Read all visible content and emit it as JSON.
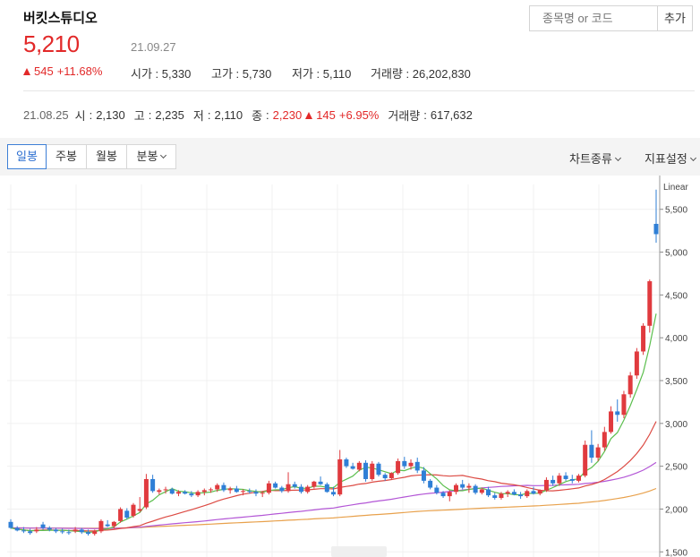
{
  "header": {
    "stock_name": "버킷스튜디오",
    "price": "5,210",
    "date": "21.09.27",
    "change": "545",
    "change_pct": "+11.68%",
    "stats": [
      {
        "label": "시가",
        "value": "5,330"
      },
      {
        "label": "고가",
        "value": "5,730"
      },
      {
        "label": "저가",
        "value": "5,110"
      },
      {
        "label": "거래량",
        "value": "26,202,830"
      }
    ]
  },
  "search": {
    "placeholder": "종목명 or 코드",
    "add_label": "추가"
  },
  "prev_day": {
    "date": "21.08.25",
    "open_label": "시",
    "open": "2,130",
    "high_label": "고",
    "high": "2,235",
    "low_label": "저",
    "low": "2,110",
    "close_label": "종",
    "close": "2,230",
    "change": "145",
    "change_pct": "+6.95%",
    "volume_label": "거래량",
    "volume": "617,632"
  },
  "toolbar": {
    "tabs": [
      "일봉",
      "주봉",
      "월봉",
      "분봉"
    ],
    "active_tab": "일봉",
    "chart_type_label": "차트종류",
    "indicator_label": "지표설정"
  },
  "colors": {
    "up": "#e03a3e",
    "down": "#2f7fd6",
    "ma5": "#5cbf4e",
    "ma20": "#dc4a43",
    "ma60": "#b356d6",
    "ma120": "#e8a14c"
  },
  "chart_data": {
    "type": "candlestick",
    "scale_label": "Linear",
    "ylim": [
      1440,
      5790
    ],
    "y_ticks": [
      {
        "value": 1500,
        "label": "1,500"
      },
      {
        "value": 2000,
        "label": "2,000"
      },
      {
        "value": 2500,
        "label": "2,500"
      },
      {
        "value": 3000,
        "label": "3,000"
      },
      {
        "value": 3500,
        "label": "3,500"
      },
      {
        "value": 4000,
        "label": "4,000"
      },
      {
        "value": 4500,
        "label": "4,500"
      },
      {
        "value": 5000,
        "label": "5,000"
      },
      {
        "value": 5500,
        "label": "5,500"
      }
    ],
    "ohlc": [
      [
        1850,
        1880,
        1770,
        1780
      ],
      [
        1780,
        1800,
        1740,
        1750
      ],
      [
        1750,
        1790,
        1720,
        1740
      ],
      [
        1740,
        1770,
        1700,
        1720
      ],
      [
        1740,
        1790,
        1720,
        1760
      ],
      [
        1820,
        1850,
        1760,
        1780
      ],
      [
        1780,
        1800,
        1740,
        1760
      ],
      [
        1760,
        1780,
        1720,
        1740
      ],
      [
        1740,
        1770,
        1710,
        1730
      ],
      [
        1730,
        1760,
        1700,
        1720
      ],
      [
        1740,
        1790,
        1720,
        1760
      ],
      [
        1760,
        1780,
        1710,
        1730
      ],
      [
        1730,
        1760,
        1690,
        1710
      ],
      [
        1710,
        1760,
        1690,
        1740
      ],
      [
        1740,
        1880,
        1720,
        1860
      ],
      [
        1820,
        1870,
        1790,
        1800
      ],
      [
        1800,
        1860,
        1770,
        1850
      ],
      [
        1860,
        2020,
        1840,
        2000
      ],
      [
        1980,
        2010,
        1880,
        1900
      ],
      [
        1920,
        2070,
        1900,
        2050
      ],
      [
        1980,
        2140,
        1960,
        2000
      ],
      [
        2020,
        2410,
        2000,
        2350
      ],
      [
        2350,
        2400,
        2190,
        2210
      ],
      [
        2200,
        2240,
        2170,
        2220
      ],
      [
        2220,
        2260,
        2180,
        2230
      ],
      [
        2230,
        2250,
        2170,
        2180
      ],
      [
        2180,
        2220,
        2150,
        2200
      ],
      [
        2200,
        2220,
        2170,
        2180
      ],
      [
        2180,
        2210,
        2140,
        2160
      ],
      [
        2160,
        2220,
        2140,
        2200
      ],
      [
        2200,
        2240,
        2160,
        2220
      ],
      [
        2220,
        2250,
        2190,
        2230
      ],
      [
        2230,
        2300,
        2200,
        2280
      ],
      [
        2280,
        2310,
        2200,
        2220
      ],
      [
        2220,
        2260,
        2180,
        2240
      ],
      [
        2240,
        2270,
        2190,
        2200
      ],
      [
        2200,
        2230,
        2160,
        2210
      ],
      [
        2210,
        2240,
        2180,
        2200
      ],
      [
        2200,
        2230,
        2150,
        2180
      ],
      [
        2180,
        2210,
        2140,
        2190
      ],
      [
        2190,
        2330,
        2170,
        2300
      ],
      [
        2300,
        2320,
        2240,
        2250
      ],
      [
        2250,
        2270,
        2190,
        2210
      ],
      [
        2210,
        2430,
        2190,
        2290
      ],
      [
        2290,
        2320,
        2240,
        2260
      ],
      [
        2260,
        2290,
        2180,
        2200
      ],
      [
        2200,
        2280,
        2180,
        2260
      ],
      [
        2260,
        2330,
        2240,
        2320
      ],
      [
        2320,
        2380,
        2280,
        2290
      ],
      [
        2290,
        2310,
        2190,
        2200
      ],
      [
        2200,
        2260,
        2150,
        2170
      ],
      [
        2170,
        2690,
        2150,
        2580
      ],
      [
        2580,
        2600,
        2480,
        2500
      ],
      [
        2500,
        2540,
        2460,
        2470
      ],
      [
        2460,
        2560,
        2440,
        2540
      ],
      [
        2540,
        2570,
        2320,
        2350
      ],
      [
        2350,
        2560,
        2330,
        2530
      ],
      [
        2530,
        2550,
        2380,
        2400
      ],
      [
        2400,
        2420,
        2330,
        2360
      ],
      [
        2360,
        2430,
        2340,
        2420
      ],
      [
        2420,
        2590,
        2400,
        2560
      ],
      [
        2560,
        2610,
        2470,
        2500
      ],
      [
        2500,
        2580,
        2460,
        2540
      ],
      [
        2550,
        2600,
        2420,
        2450
      ],
      [
        2450,
        2490,
        2300,
        2330
      ],
      [
        2330,
        2350,
        2230,
        2250
      ],
      [
        2250,
        2280,
        2170,
        2190
      ],
      [
        2190,
        2210,
        2130,
        2150
      ],
      [
        2150,
        2220,
        2090,
        2200
      ],
      [
        2200,
        2300,
        2170,
        2280
      ],
      [
        2290,
        2340,
        2230,
        2250
      ],
      [
        2250,
        2300,
        2190,
        2270
      ],
      [
        2270,
        2290,
        2170,
        2190
      ],
      [
        2190,
        2250,
        2170,
        2230
      ],
      [
        2230,
        2260,
        2140,
        2160
      ],
      [
        2160,
        2190,
        2110,
        2130
      ],
      [
        2130,
        2200,
        2110,
        2180
      ],
      [
        2180,
        2220,
        2140,
        2200
      ],
      [
        2200,
        2230,
        2160,
        2170
      ],
      [
        2170,
        2200,
        2120,
        2150
      ],
      [
        2150,
        2230,
        2130,
        2210
      ],
      [
        2210,
        2260,
        2170,
        2180
      ],
      [
        2180,
        2230,
        2160,
        2220
      ],
      [
        2220,
        2370,
        2200,
        2340
      ],
      [
        2340,
        2390,
        2270,
        2300
      ],
      [
        2300,
        2420,
        2270,
        2390
      ],
      [
        2390,
        2430,
        2330,
        2350
      ],
      [
        2350,
        2400,
        2300,
        2330
      ],
      [
        2330,
        2410,
        2310,
        2390
      ],
      [
        2390,
        2800,
        2370,
        2750
      ],
      [
        2750,
        2920,
        2540,
        2600
      ],
      [
        2600,
        2760,
        2560,
        2720
      ],
      [
        2720,
        2960,
        2680,
        2900
      ],
      [
        2900,
        3200,
        2880,
        3140
      ],
      [
        3140,
        3280,
        3020,
        3100
      ],
      [
        3100,
        3380,
        3060,
        3340
      ],
      [
        3340,
        3600,
        3300,
        3560
      ],
      [
        3560,
        3880,
        3520,
        3840
      ],
      [
        3840,
        4170,
        3800,
        4140
      ],
      [
        4140,
        4680,
        4060,
        4660
      ],
      [
        5330,
        5730,
        5110,
        5210
      ]
    ]
  }
}
